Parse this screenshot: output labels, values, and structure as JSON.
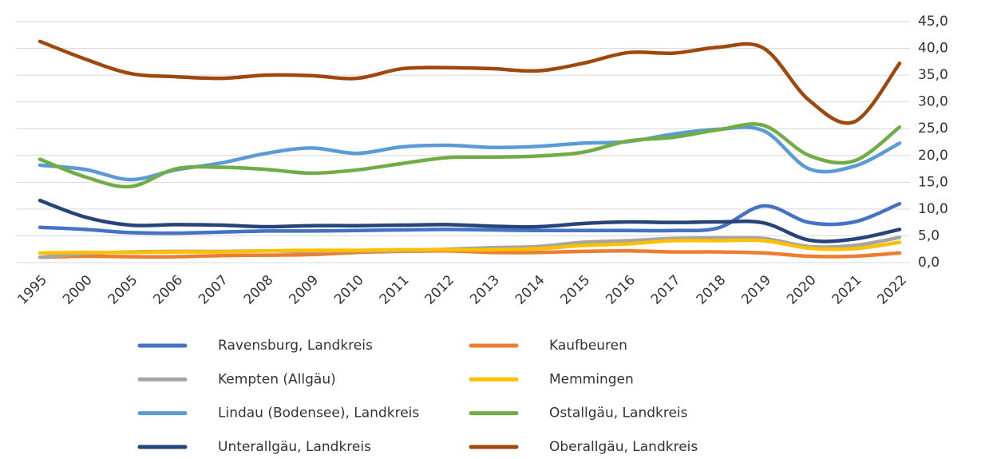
{
  "chart_data": {
    "type": "line",
    "categories": [
      "1995",
      "2000",
      "2005",
      "2006",
      "2007",
      "2008",
      "2009",
      "2010",
      "2011",
      "2012",
      "2013",
      "2014",
      "2015",
      "2016",
      "2017",
      "2018",
      "2019",
      "2020",
      "2021",
      "2022"
    ],
    "series": [
      {
        "name": "Ravensburg, Landkreis",
        "color": "#4472c4",
        "values": [
          6.6,
          6.2,
          5.6,
          5.5,
          5.7,
          5.9,
          5.9,
          6.0,
          6.1,
          6.2,
          6.1,
          6.0,
          6.0,
          6.0,
          6.0,
          6.5,
          10.6,
          7.5,
          7.6,
          11.0
        ]
      },
      {
        "name": "Kaufbeuren",
        "color": "#ed7d31",
        "values": [
          1.0,
          1.2,
          1.1,
          1.1,
          1.3,
          1.4,
          1.5,
          1.9,
          2.1,
          2.2,
          1.9,
          1.9,
          2.1,
          2.2,
          2.0,
          2.0,
          1.8,
          1.2,
          1.2,
          1.8
        ]
      },
      {
        "name": "Kempten (Allgäu)",
        "color": "#a5a5a5",
        "values": [
          1.0,
          1.7,
          2.0,
          2.1,
          2.1,
          2.2,
          2.1,
          2.2,
          2.2,
          2.5,
          2.8,
          3.0,
          3.8,
          4.1,
          4.5,
          4.6,
          4.5,
          3.0,
          3.2,
          4.7
        ]
      },
      {
        "name": "Memmingen",
        "color": "#ffc000",
        "values": [
          1.8,
          1.9,
          1.9,
          2.0,
          2.0,
          2.2,
          2.3,
          2.3,
          2.4,
          2.4,
          2.4,
          2.6,
          3.2,
          3.5,
          4.1,
          4.1,
          4.1,
          2.7,
          2.6,
          3.8
        ]
      },
      {
        "name": "Lindau (Bodensee), Landkreis",
        "color": "#5b9bd5",
        "values": [
          18.2,
          17.4,
          15.5,
          17.3,
          18.6,
          20.4,
          21.4,
          20.4,
          21.6,
          21.9,
          21.5,
          21.7,
          22.3,
          22.6,
          24.0,
          24.9,
          24.6,
          17.5,
          18.0,
          22.3
        ]
      },
      {
        "name": "Ostallgäu, Landkreis",
        "color": "#70ad47",
        "values": [
          19.3,
          16.0,
          14.2,
          17.5,
          17.8,
          17.4,
          16.7,
          17.3,
          18.5,
          19.6,
          19.7,
          19.9,
          20.6,
          22.7,
          23.4,
          24.8,
          25.6,
          20.0,
          19.0,
          25.3
        ]
      },
      {
        "name": "Unterallgäu, Landkreis",
        "color": "#264478",
        "values": [
          11.6,
          8.5,
          7.0,
          7.1,
          7.0,
          6.7,
          6.9,
          6.9,
          7.0,
          7.1,
          6.8,
          6.7,
          7.3,
          7.6,
          7.5,
          7.6,
          7.4,
          4.2,
          4.4,
          6.2
        ]
      },
      {
        "name": "Oberallgäu, Landkreis",
        "color": "#9e480e",
        "values": [
          41.3,
          38.0,
          35.3,
          34.7,
          34.4,
          35.0,
          34.9,
          34.4,
          36.2,
          36.4,
          36.2,
          35.8,
          37.2,
          39.2,
          39.1,
          40.2,
          40.0,
          30.3,
          26.3,
          37.2
        ]
      }
    ],
    "ylim": [
      0,
      45
    ],
    "yticks": [
      {
        "value": 0,
        "label": "0,0"
      },
      {
        "value": 5,
        "label": "5,0"
      },
      {
        "value": 10,
        "label": "10,0"
      },
      {
        "value": 15,
        "label": "15,0"
      },
      {
        "value": 20,
        "label": "20,0"
      },
      {
        "value": 25,
        "label": "25,0"
      },
      {
        "value": 30,
        "label": "30,0"
      },
      {
        "value": 35,
        "label": "35,0"
      },
      {
        "value": 40,
        "label": "40,0"
      },
      {
        "value": 45,
        "label": "45,0"
      }
    ],
    "grid": true,
    "legend": "bottom"
  }
}
